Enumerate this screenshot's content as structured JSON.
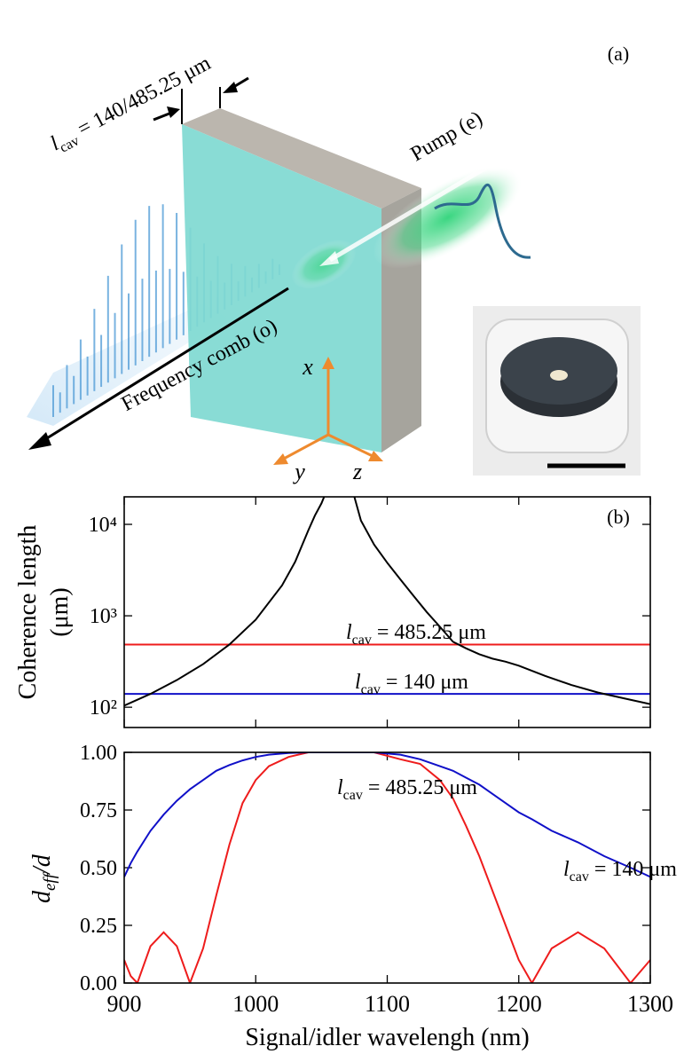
{
  "panel_a": {
    "label": "(a)",
    "cavity_label": {
      "symbol": "l",
      "subscript": "cav",
      "text": " = 140/485.25 μm"
    },
    "pump": "Pump (e)",
    "comb": "Frequency comb (o)",
    "axes": {
      "x": "x",
      "y": "y",
      "z": "z"
    }
  },
  "chart_data": [
    {
      "type": "line",
      "panel_label": "(b)",
      "ylabel": [
        "Coherence length",
        "(μm)"
      ],
      "log_y": true,
      "xlim": [
        900,
        1300
      ],
      "xticks": [
        900,
        1000,
        1100,
        1200,
        1300
      ],
      "show_xtick_labels": false,
      "ylim": [
        60,
        20000
      ],
      "yticks": [
        {
          "value": 100,
          "label": "10²"
        },
        {
          "value": 1000,
          "label": "10³"
        },
        {
          "value": 10000,
          "label": "10⁴"
        }
      ],
      "x": [
        900,
        920,
        940,
        960,
        980,
        1000,
        1020,
        1030,
        1040,
        1045,
        1050,
        1052,
        1064,
        1075,
        1080,
        1090,
        1100,
        1110,
        1120,
        1130,
        1140,
        1150,
        1160,
        1170,
        1180,
        1190,
        1200,
        1220,
        1240,
        1260,
        1280,
        1300
      ],
      "series": [
        {
          "color": "#000000",
          "values": [
            104,
            140,
            198,
            296,
            485,
            907,
            2150,
            3900,
            8600,
            12500,
            17000,
            20000,
            null,
            20000,
            11000,
            6000,
            3800,
            2500,
            1650,
            1100,
            760,
            520,
            440,
            380,
            340,
            315,
            285,
            220,
            175,
            145,
            125,
            108
          ]
        }
      ],
      "hlines": [
        {
          "value": 485.25,
          "color": "#ee1c1c",
          "label": {
            "symbol": "l",
            "subscript": "cav",
            "text": " = 485.25 μm"
          },
          "label_color": "#ee1c1c"
        },
        {
          "value": 140,
          "color": "#1010c8",
          "label": {
            "symbol": "l",
            "subscript": "cav",
            "text": " = 140 μm"
          },
          "label_color": "#1f6fe0"
        }
      ]
    },
    {
      "type": "line",
      "ylabel": {
        "symbol": "d",
        "subscript": "eff",
        "text": "/d"
      },
      "xlabel": "Signal/idler wavelengh (nm)",
      "xlim": [
        900,
        1300
      ],
      "xticks": [
        900,
        1000,
        1100,
        1200,
        1300
      ],
      "show_xtick_labels": true,
      "ylim": [
        0,
        1
      ],
      "yticks": [
        {
          "value": 0,
          "label": "0.00"
        },
        {
          "value": 0.25,
          "label": "0.25"
        },
        {
          "value": 0.5,
          "label": "0.50"
        },
        {
          "value": 0.75,
          "label": "0.75"
        },
        {
          "value": 1,
          "label": "1.00"
        }
      ],
      "x": [
        900,
        905,
        910,
        920,
        930,
        940,
        950,
        960,
        970,
        980,
        990,
        1000,
        1010,
        1025,
        1040,
        1064,
        1090,
        1110,
        1125,
        1140,
        1150,
        1160,
        1170,
        1180,
        1190,
        1200,
        1210,
        1225,
        1245,
        1265,
        1285,
        1300
      ],
      "series": [
        {
          "color": "#ee1c1c",
          "label": {
            "symbol": "l",
            "subscript": "cav",
            "text": " = 485.25 μm"
          },
          "label_color": "#ee1c1c",
          "values": [
            0.1,
            0.03,
            0,
            0.16,
            0.22,
            0.16,
            0,
            0.15,
            0.38,
            0.6,
            0.78,
            0.88,
            0.94,
            0.98,
            1,
            1,
            1,
            0.97,
            0.95,
            0.88,
            0.8,
            0.68,
            0.55,
            0.4,
            0.25,
            0.1,
            0,
            0.15,
            0.22,
            0.15,
            0,
            0.1
          ]
        },
        {
          "color": "#1010c8",
          "label": {
            "symbol": "l",
            "subscript": "cav",
            "text": " = 140 μm"
          },
          "label_color": "#1f6fe0",
          "values": [
            0.46,
            0.52,
            0.57,
            0.66,
            0.73,
            0.79,
            0.84,
            0.88,
            0.92,
            0.945,
            0.965,
            0.98,
            0.99,
            0.997,
            1,
            1,
            1,
            0.99,
            0.97,
            0.94,
            0.92,
            0.89,
            0.86,
            0.82,
            0.78,
            0.74,
            0.71,
            0.66,
            0.61,
            0.55,
            0.5,
            0.46
          ]
        }
      ]
    }
  ]
}
